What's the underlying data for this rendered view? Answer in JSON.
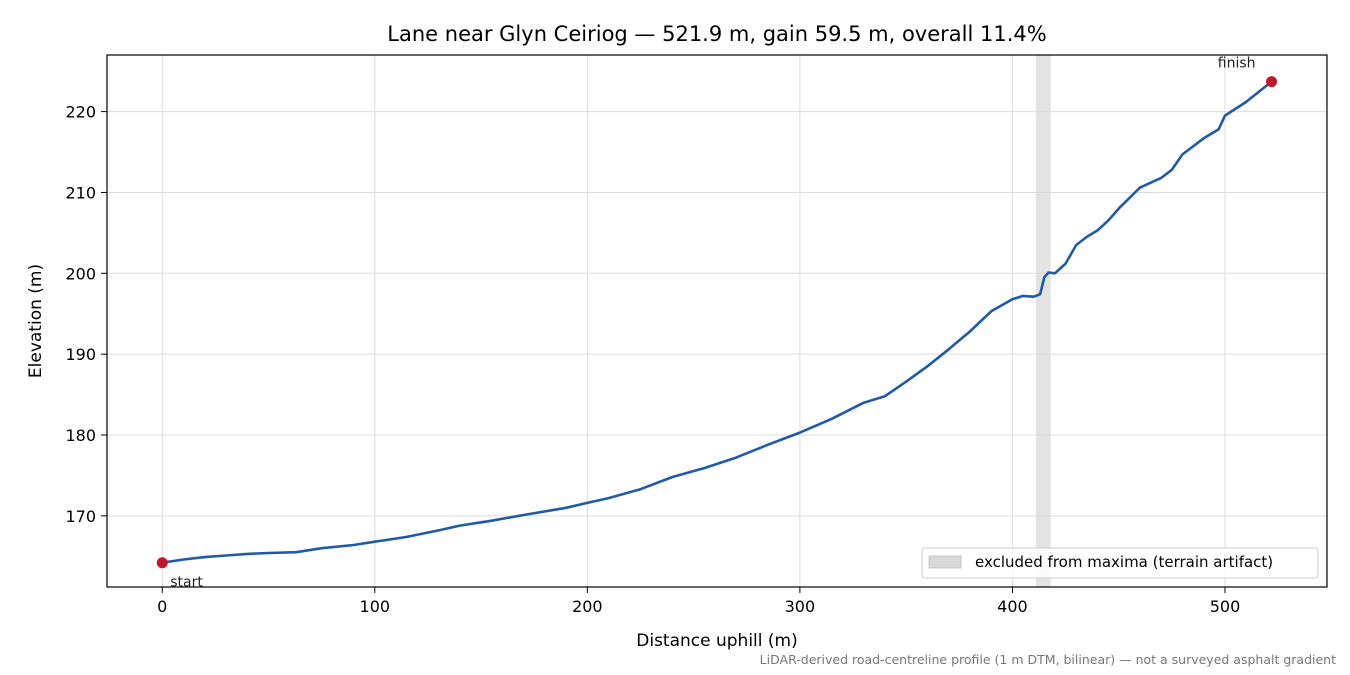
{
  "chart_data": {
    "type": "line",
    "title": "Lane near Glyn Ceiriog — 521.9 m, gain 59.5 m, overall 11.4%",
    "xlabel": "Distance uphill (m)",
    "ylabel": "Elevation (m)",
    "xlim": [
      -26,
      548
    ],
    "ylim": [
      161.2,
      227.0
    ],
    "xticks": [
      0,
      100,
      200,
      300,
      400,
      500
    ],
    "yticks": [
      170,
      180,
      190,
      200,
      210,
      220
    ],
    "grid": true,
    "legend_placement": "lower-right",
    "colors": {
      "line": "#1f5aa8",
      "endpoint": "#c0182a",
      "band": "#d9d9d9"
    },
    "series": [
      {
        "x": [
          0,
          10,
          20,
          30,
          40,
          50,
          63,
          75,
          90,
          100,
          115,
          130,
          140,
          155,
          170,
          190,
          200,
          210,
          225,
          240,
          255,
          270,
          285,
          300,
          315,
          330,
          340,
          350,
          360,
          370,
          380,
          390,
          400,
          405,
          410,
          413,
          415,
          417,
          420,
          425,
          430,
          435,
          440,
          445,
          450,
          460,
          470,
          475,
          480,
          490,
          497,
          500,
          510,
          521.9
        ],
        "y": [
          164.2,
          164.6,
          164.9,
          165.1,
          165.3,
          165.4,
          165.5,
          166.0,
          166.4,
          166.8,
          167.4,
          168.2,
          168.8,
          169.4,
          170.1,
          171.0,
          171.6,
          172.2,
          173.3,
          174.8,
          175.9,
          177.2,
          178.8,
          180.3,
          182.0,
          184.0,
          184.8,
          186.6,
          188.5,
          190.6,
          192.8,
          195.3,
          196.8,
          197.2,
          197.1,
          197.4,
          199.5,
          200.1,
          200.0,
          201.2,
          203.5,
          204.5,
          205.3,
          206.5,
          208.0,
          210.6,
          211.8,
          212.8,
          214.7,
          216.7,
          217.8,
          219.5,
          221.2,
          223.7
        ]
      }
    ],
    "endpoints": [
      {
        "label": "start",
        "x": 0,
        "y": 164.2
      },
      {
        "label": "finish",
        "x": 521.9,
        "y": 223.7
      }
    ],
    "excluded_band": {
      "x0": 411,
      "x1": 418,
      "label": "excluded from maxima (terrain artifact)"
    },
    "footnote": "LiDAR-derived road-centreline profile (1 m DTM, bilinear) — not a surveyed asphalt gradient"
  }
}
